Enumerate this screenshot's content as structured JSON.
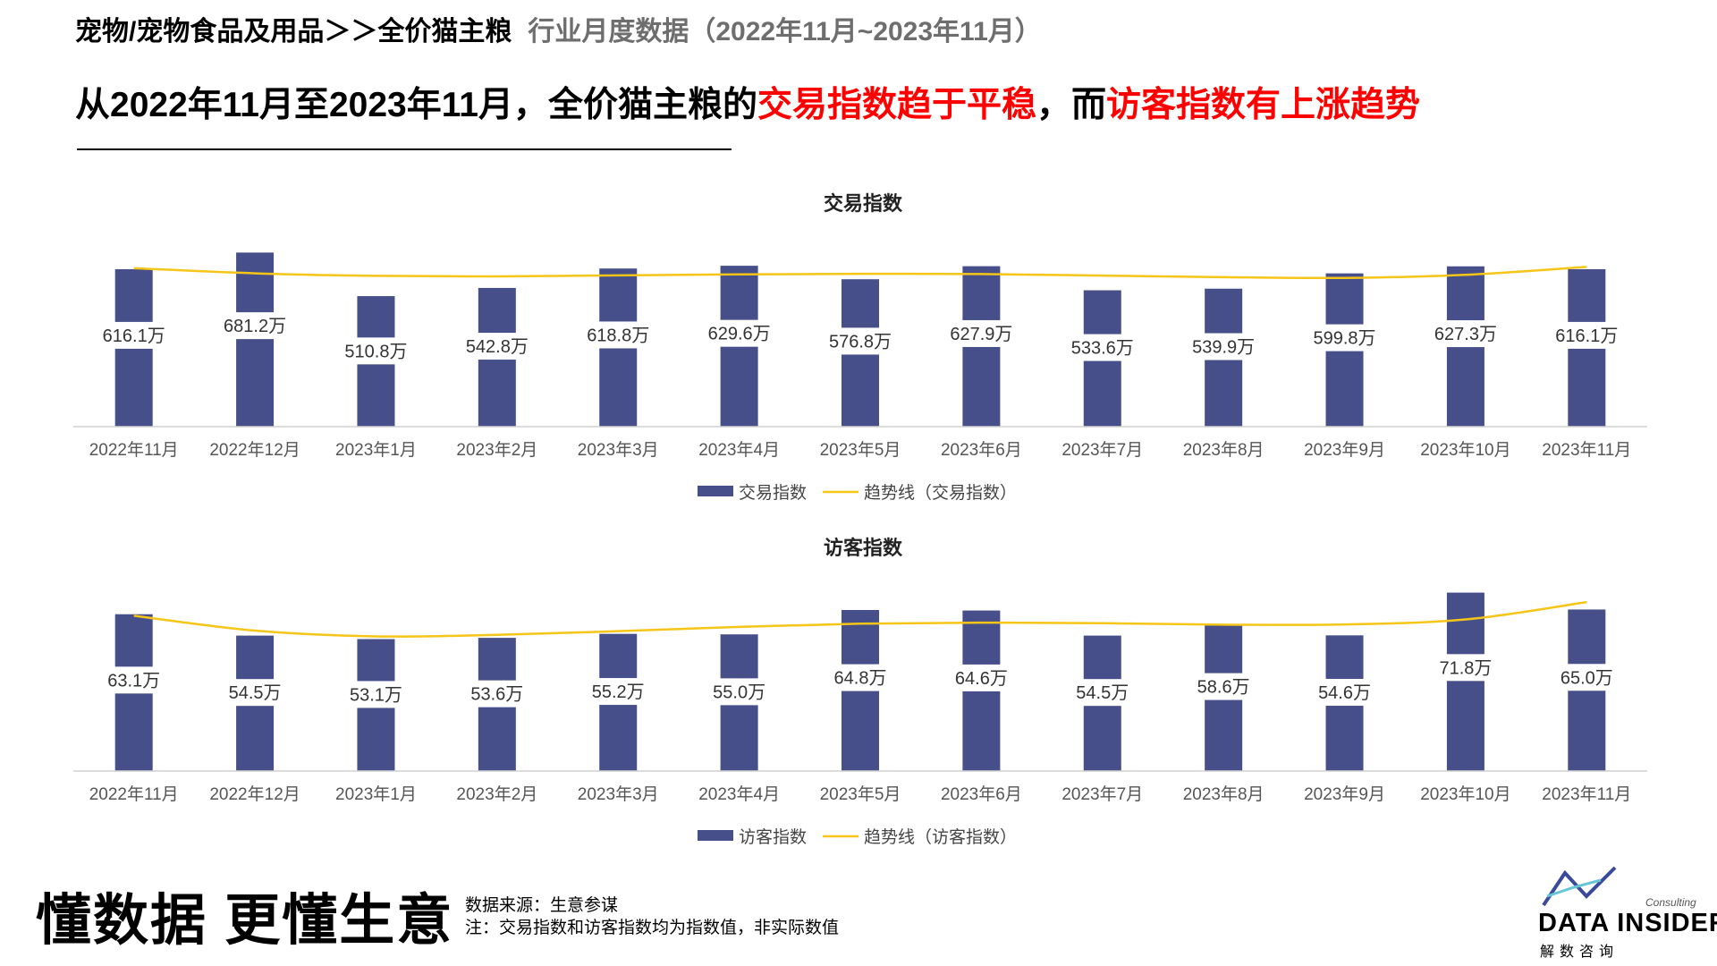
{
  "header": {
    "breadcrumb": "宠物/宠物食品及用品＞＞全价猫主粮",
    "subtitle": "行业月度数据（2022年11月~2023年11月）"
  },
  "headline": {
    "part1": "从2022年11月至2023年11月，全价猫主粮的",
    "part2": "交易指数趋于平稳",
    "part3": "，而",
    "part4": "访客指数有上涨趋势"
  },
  "colors": {
    "bar": "#474f8a",
    "trend": "#f5c518",
    "highlight": "#ff0000"
  },
  "chart_data": [
    {
      "type": "bar",
      "title": "交易指数",
      "categories": [
        "2022年11月",
        "2022年12月",
        "2023年1月",
        "2023年2月",
        "2023年3月",
        "2023年4月",
        "2023年5月",
        "2023年6月",
        "2023年7月",
        "2023年8月",
        "2023年9月",
        "2023年10月",
        "2023年11月"
      ],
      "series": [
        {
          "name": "交易指数",
          "values": [
            616.1,
            681.2,
            510.8,
            542.8,
            618.8,
            629.6,
            576.8,
            627.9,
            533.6,
            539.9,
            599.8,
            627.3,
            616.1
          ]
        }
      ],
      "value_labels": [
        "616.1万",
        "681.2万",
        "510.8万",
        "542.8万",
        "618.8万",
        "629.6万",
        "576.8万",
        "627.9万",
        "533.6万",
        "539.9万",
        "599.8万",
        "627.3万",
        "616.1万"
      ],
      "trend": {
        "name": "趋势线（交易指数）",
        "values": [
          620,
          600,
          590,
          588,
          592,
          596,
          598,
          597,
          591,
          585,
          582,
          594,
          625
        ]
      },
      "legend_position": "bottom",
      "grid": false,
      "ylim": [
        0,
        700
      ]
    },
    {
      "type": "bar",
      "title": "访客指数",
      "categories": [
        "2022年11月",
        "2022年12月",
        "2023年1月",
        "2023年2月",
        "2023年3月",
        "2023年4月",
        "2023年5月",
        "2023年6月",
        "2023年7月",
        "2023年8月",
        "2023年9月",
        "2023年10月",
        "2023年11月"
      ],
      "series": [
        {
          "name": "访客指数",
          "values": [
            63.1,
            54.5,
            53.1,
            53.6,
            55.2,
            55.0,
            64.8,
            64.6,
            54.5,
            58.6,
            54.6,
            71.8,
            65.0
          ]
        }
      ],
      "value_labels": [
        "63.1万",
        "54.5万",
        "53.1万",
        "53.6万",
        "55.2万",
        "55.0万",
        "64.8万",
        "64.6万",
        "54.5万",
        "58.6万",
        "54.6万",
        "71.8万",
        "65.0万"
      ],
      "trend": {
        "name": "趋势线（访客指数）",
        "values": [
          62.5,
          56.5,
          54.2,
          54.8,
          56.3,
          58.0,
          59.3,
          59.7,
          59.5,
          58.9,
          59.0,
          61.0,
          68.0
        ]
      },
      "legend_position": "bottom",
      "grid": false,
      "ylim": [
        0,
        72
      ]
    }
  ],
  "footer": {
    "slogan": "懂数据 更懂生意",
    "source": "数据来源：生意参谋",
    "note": "注：交易指数和访客指数均为指数值，非实际数值",
    "logo_name": "DATA INSIDER",
    "logo_sub": "解数咨询",
    "logo_tag": "Consulting"
  }
}
